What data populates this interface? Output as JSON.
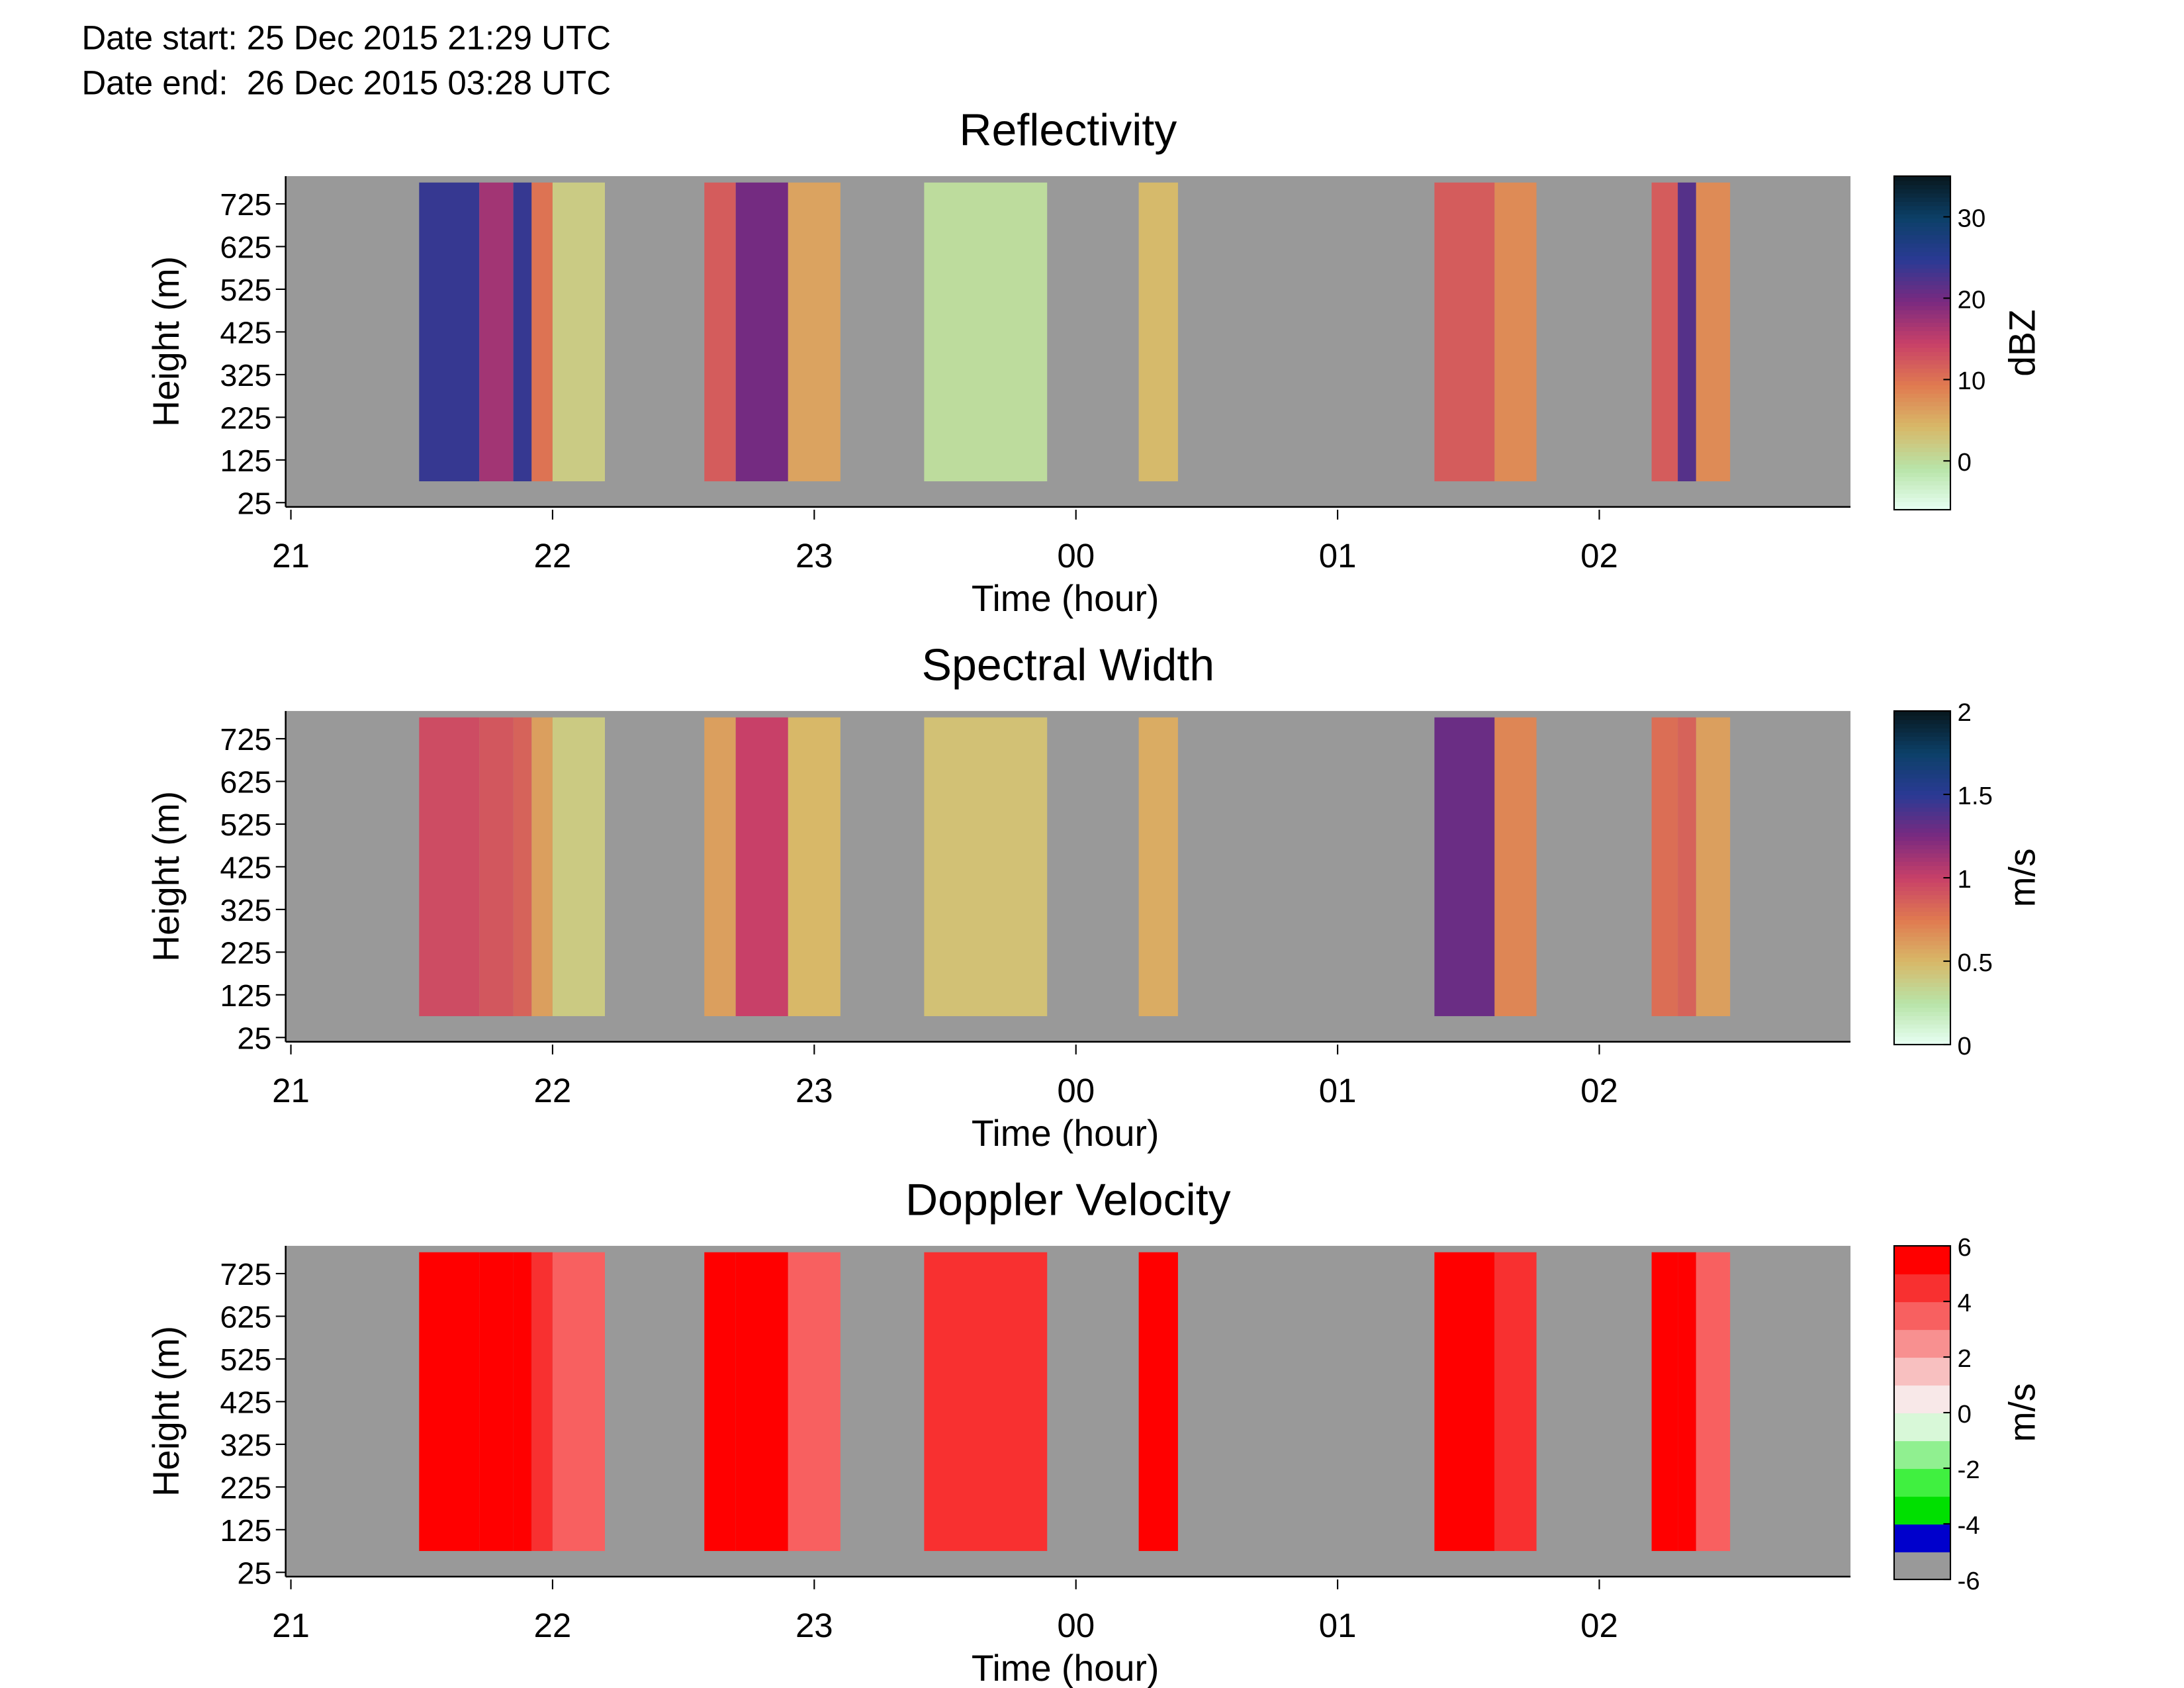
{
  "header": {
    "date_start": "Date start: 25 Dec 2015 21:29 UTC",
    "date_end": "Date end:  26 Dec 2015 03:28 UTC"
  },
  "chart_data": [
    {
      "type": "heatmap",
      "title": "Reflectivity",
      "x_label": "Time (hour)",
      "y_label": "Height (m)",
      "background": "#999999",
      "x_edges": [
        21.49,
        21.72,
        21.85,
        21.92,
        22.0,
        22.2,
        22.58,
        22.7,
        22.9,
        23.1,
        23.42,
        23.89,
        24.24,
        24.39,
        25.37,
        25.6,
        25.76,
        26.2,
        26.3,
        26.37,
        26.5
      ],
      "y_edges": [
        75,
        775
      ],
      "values": [
        24,
        17,
        24,
        10,
        2,
        null,
        12,
        20,
        6,
        null,
        0,
        null,
        4,
        null,
        12,
        8,
        null,
        12,
        22,
        8
      ],
      "xlim": [
        20.98,
        26.96
      ],
      "xticks": [
        21,
        22,
        23,
        {
          "value": 24,
          "label": "00"
        },
        {
          "value": 25,
          "label": "01"
        },
        {
          "value": 26,
          "label": "02"
        }
      ],
      "ylim": [
        15,
        790
      ],
      "yticks": [
        25,
        125,
        225,
        325,
        425,
        525,
        625,
        725
      ],
      "colorbar": {
        "label": "dBZ",
        "lim": [
          -6,
          35
        ],
        "ticks": [
          0,
          10,
          20,
          30
        ],
        "discrete": false,
        "colors": [
          "#e8fff4",
          "#b8e4a8",
          "#d8b868",
          "#e07a50",
          "#c84068",
          "#7a2a80",
          "#2a3a94",
          "#0c4068",
          "#08181e"
        ]
      }
    },
    {
      "type": "heatmap",
      "title": "Spectral Width",
      "x_label": "Time (hour)",
      "y_label": "Height (m)",
      "background": "#999999",
      "x_edges": [
        21.49,
        21.72,
        21.85,
        21.92,
        22.0,
        22.2,
        22.58,
        22.7,
        22.9,
        23.1,
        23.42,
        23.89,
        24.24,
        24.39,
        25.37,
        25.6,
        25.76,
        26.2,
        26.3,
        26.37,
        26.5
      ],
      "y_edges": [
        75,
        775
      ],
      "values": [
        0.95,
        0.9,
        0.85,
        0.6,
        0.4,
        null,
        0.6,
        1.0,
        0.5,
        null,
        0.45,
        null,
        0.55,
        null,
        1.3,
        0.7,
        null,
        0.8,
        0.85,
        0.6
      ],
      "xlim": [
        20.98,
        26.96
      ],
      "xticks": [
        21,
        22,
        23,
        {
          "value": 24,
          "label": "00"
        },
        {
          "value": 25,
          "label": "01"
        },
        {
          "value": 26,
          "label": "02"
        }
      ],
      "ylim": [
        15,
        790
      ],
      "yticks": [
        25,
        125,
        225,
        325,
        425,
        525,
        625,
        725
      ],
      "colorbar": {
        "label": "m/s",
        "lim": [
          0,
          2
        ],
        "ticks": [
          0,
          0.5,
          1,
          1.5,
          2
        ],
        "discrete": false,
        "colors": [
          "#e8fff4",
          "#b8e4a8",
          "#d8b868",
          "#e07a50",
          "#c84068",
          "#7a2a80",
          "#2a3a94",
          "#0c4068",
          "#08181e"
        ]
      }
    },
    {
      "type": "heatmap",
      "title": "Doppler Velocity",
      "x_label": "Time (hour)",
      "y_label": "Height (m)",
      "background": "#999999",
      "x_edges": [
        21.49,
        21.72,
        21.85,
        21.92,
        22.0,
        22.2,
        22.58,
        22.7,
        22.9,
        23.1,
        23.42,
        23.89,
        24.24,
        24.39,
        25.37,
        25.6,
        25.76,
        26.2,
        26.3,
        26.37,
        26.5
      ],
      "y_edges": [
        75,
        775
      ],
      "values": [
        6,
        6,
        5,
        4,
        3,
        null,
        6,
        5,
        3,
        null,
        4,
        null,
        5,
        null,
        6,
        4,
        null,
        6,
        5,
        3
      ],
      "xlim": [
        20.98,
        26.96
      ],
      "xticks": [
        21,
        22,
        23,
        {
          "value": 24,
          "label": "00"
        },
        {
          "value": 25,
          "label": "01"
        },
        {
          "value": 26,
          "label": "02"
        }
      ],
      "ylim": [
        15,
        790
      ],
      "yticks": [
        25,
        125,
        225,
        325,
        425,
        525,
        625,
        725
      ],
      "colorbar": {
        "label": "m/s",
        "lim": [
          -6,
          6
        ],
        "ticks": [
          -6,
          -4,
          -2,
          0,
          2,
          4,
          6
        ],
        "discrete": true,
        "colors": [
          "#999999",
          "#0000cc",
          "#00e000",
          "#40f040",
          "#90f090",
          "#d8f8d8",
          "#f8e8e8",
          "#f8c0c0",
          "#f89090",
          "#f86060",
          "#f83030",
          "#ff0000"
        ]
      }
    }
  ]
}
